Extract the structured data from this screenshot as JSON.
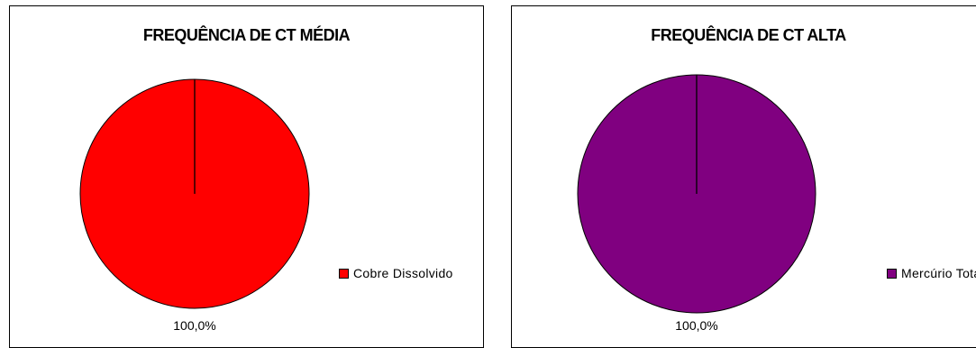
{
  "chart_data": [
    {
      "type": "pie",
      "title": "FREQUÊNCIA DE CT MÉDIA",
      "categories": [
        "Cobre Dissolvido"
      ],
      "values": [
        100.0
      ],
      "data_labels": [
        "100,0%"
      ],
      "colors": [
        "#ff0000"
      ],
      "legend": {
        "entries": [
          "Cobre Dissolvido"
        ],
        "placement": "right"
      }
    },
    {
      "type": "pie",
      "title": "FREQUÊNCIA DE CT ALTA",
      "categories": [
        "Mercúrio Total"
      ],
      "values": [
        100.0
      ],
      "data_labels": [
        "100,0%"
      ],
      "colors": [
        "#800080"
      ],
      "legend": {
        "entries": [
          "Mercúrio Total"
        ],
        "placement": "right"
      }
    }
  ]
}
